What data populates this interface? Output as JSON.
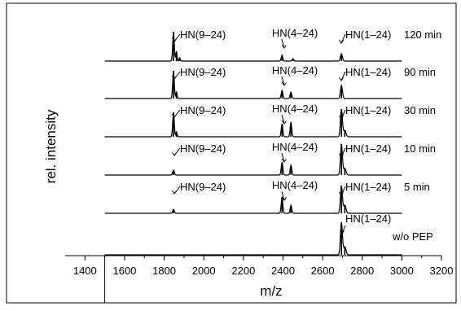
{
  "chart_data": {
    "type": "line",
    "title": "",
    "xlabel": "m/z",
    "ylabel": "rel. intensity",
    "xlim": [
      1300,
      3200
    ],
    "x_ticks": [
      1400,
      1600,
      1800,
      2000,
      2200,
      2400,
      2600,
      2800,
      3000,
      3200
    ],
    "x_tick_labels": [
      "1400",
      "1600",
      "1800",
      "2000",
      "2200",
      "2400",
      "2600",
      "2800",
      "3000",
      "3200"
    ],
    "grid": false,
    "series": [
      {
        "name": "120 min",
        "peaks": [
          {
            "mz": 1847,
            "rel": 0.9
          },
          {
            "mz": 1862,
            "rel": 0.3
          },
          {
            "mz": 1878,
            "rel": 0.1
          },
          {
            "mz": 2395,
            "rel": 0.18
          },
          {
            "mz": 2450,
            "rel": 0.07
          },
          {
            "mz": 2695,
            "rel": 0.22
          }
        ],
        "annotations": [
          {
            "label": "HN(9–24)",
            "mz": 1847
          },
          {
            "label": "HN(4–24)",
            "mz": 2410
          },
          {
            "label": "HN(1–24)",
            "mz": 2690
          }
        ]
      },
      {
        "name": "90 min",
        "peaks": [
          {
            "mz": 1847,
            "rel": 0.85
          },
          {
            "mz": 1862,
            "rel": 0.2
          },
          {
            "mz": 2395,
            "rel": 0.25
          },
          {
            "mz": 2440,
            "rel": 0.2
          },
          {
            "mz": 2695,
            "rel": 0.4
          }
        ],
        "annotations": [
          {
            "label": "HN(9–24)",
            "mz": 1847
          },
          {
            "label": "HN(4–24)",
            "mz": 2410
          },
          {
            "label": "HN(1–24)",
            "mz": 2690
          }
        ]
      },
      {
        "name": "30 min",
        "peaks": [
          {
            "mz": 1847,
            "rel": 0.75
          },
          {
            "mz": 1862,
            "rel": 0.15
          },
          {
            "mz": 2395,
            "rel": 0.4
          },
          {
            "mz": 2440,
            "rel": 0.45
          },
          {
            "mz": 2695,
            "rel": 0.85
          },
          {
            "mz": 2712,
            "rel": 0.2
          }
        ],
        "annotations": [
          {
            "label": "HN(9–24)",
            "mz": 1847
          },
          {
            "label": "HN(4–24)",
            "mz": 2410
          },
          {
            "label": "HN(1–24)",
            "mz": 2690
          }
        ]
      },
      {
        "name": "10 min",
        "peaks": [
          {
            "mz": 1847,
            "rel": 0.15
          },
          {
            "mz": 2395,
            "rel": 0.4
          },
          {
            "mz": 2440,
            "rel": 0.3
          },
          {
            "mz": 2695,
            "rel": 0.95
          },
          {
            "mz": 2712,
            "rel": 0.2
          }
        ],
        "annotations": [
          {
            "label": "HN(9–24)",
            "mz": 1847
          },
          {
            "label": "HN(4–24)",
            "mz": 2410
          },
          {
            "label": "HN(1–24)",
            "mz": 2690
          }
        ]
      },
      {
        "name": "5 min",
        "peaks": [
          {
            "mz": 1847,
            "rel": 0.12
          },
          {
            "mz": 2395,
            "rel": 0.5
          },
          {
            "mz": 2440,
            "rel": 0.25
          },
          {
            "mz": 2695,
            "rel": 0.85
          },
          {
            "mz": 2712,
            "rel": 0.25
          }
        ],
        "annotations": [
          {
            "label": "HN(9–24)",
            "mz": 1847
          },
          {
            "label": "HN(4–24)",
            "mz": 2410
          },
          {
            "label": "HN(1–24)",
            "mz": 2690
          }
        ]
      },
      {
        "name": "w/o PEP",
        "peaks": [
          {
            "mz": 2695,
            "rel": 1.0
          },
          {
            "mz": 2712,
            "rel": 0.25
          }
        ],
        "annotations": [
          {
            "label": "HN(1–24)",
            "mz": 2690
          }
        ]
      }
    ]
  }
}
